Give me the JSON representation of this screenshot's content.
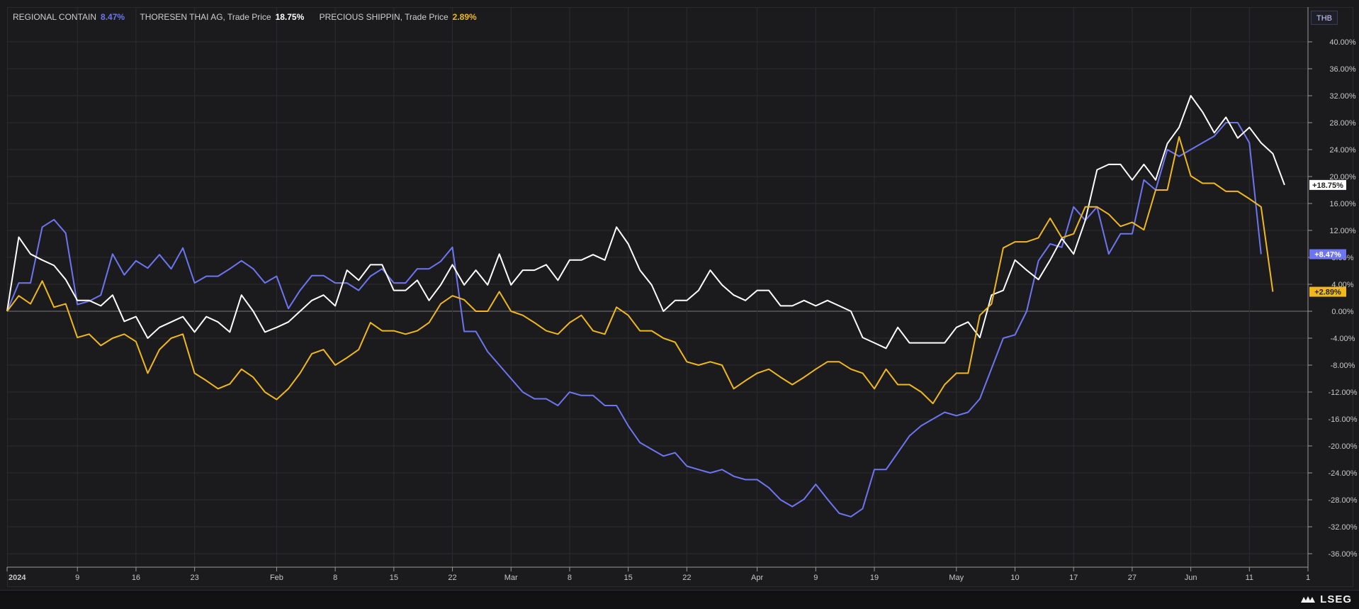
{
  "legend": [
    {
      "name": "REGIONAL CONTAIN",
      "value": "8.47%",
      "color": "#6d75f0"
    },
    {
      "name": "THORESEN THAI AG, Trade Price",
      "value": "18.75%",
      "color": "#ffffff"
    },
    {
      "name": "PRECIOUS SHIPPIN, Trade Price",
      "value": "2.89%",
      "color": "#f0b81c"
    }
  ],
  "currency_button": "THB",
  "brand": "LSEG",
  "chart_data": {
    "type": "line",
    "ylim": [
      -38,
      42
    ],
    "y_ticks": [
      -36,
      -32,
      -28,
      -24,
      -20,
      -16,
      -12,
      -8,
      -4,
      0,
      4,
      8,
      12,
      16,
      20,
      24,
      28,
      32,
      36,
      40
    ],
    "y_tick_labels": [
      "-36.00%",
      "-32.00%",
      "-28.00%",
      "-24.00%",
      "-20.00%",
      "-16.00%",
      "-12.00%",
      "-8.00%",
      "-4.00%",
      "0.00%",
      "4.00%",
      "8.00%",
      "12.00%",
      "16.00%",
      "20.00%",
      "24.00%",
      "28.00%",
      "32.00%",
      "36.00%",
      "40.00%"
    ],
    "x_tick_labels": [
      "2024",
      "9",
      "16",
      "23",
      "Feb",
      "8",
      "15",
      "22",
      "Mar",
      "8",
      "15",
      "22",
      "Apr",
      "9",
      "19",
      "May",
      "10",
      "17",
      "27",
      "Jun",
      "11",
      "1"
    ],
    "x_tick_index": [
      0,
      6,
      11,
      16,
      23,
      28,
      33,
      38,
      43,
      48,
      53,
      58,
      64,
      69,
      74,
      81,
      86,
      91,
      96,
      101,
      106,
      111
    ],
    "n_points": 112,
    "grid": true,
    "zero_line": true,
    "end_labels": [
      "+18.75%",
      "+8.47%",
      "+2.89%"
    ],
    "series": [
      {
        "name": "REGIONAL CONTAIN",
        "color": "#6d75f0",
        "values": [
          0,
          4.2,
          4.2,
          12.5,
          13.6,
          11.6,
          1,
          1.5,
          2.4,
          8.5,
          5.4,
          7.5,
          6.4,
          8.4,
          6.3,
          9.4,
          4.2,
          5.2,
          5.2,
          6.3,
          7.5,
          6.3,
          4.2,
          5.2,
          0.4,
          3.1,
          5.3,
          5.3,
          4.2,
          4.2,
          3.1,
          5.2,
          6.3,
          4.2,
          4.2,
          6.3,
          6.3,
          7.4,
          9.5,
          -3,
          -3,
          -6,
          -8,
          -10,
          -12,
          -13,
          -13,
          -14,
          -12,
          -12.5,
          -12.5,
          -14,
          -14,
          -17,
          -19.5,
          -20.5,
          -21.5,
          -21,
          -23,
          -23.5,
          -24,
          -23.5,
          -24.5,
          -25,
          -25,
          -26.2,
          -28,
          -29,
          -27.9,
          -25.7,
          -27.9,
          -30,
          -30.5,
          -29.3,
          -23.5,
          -23.5,
          -21,
          -18.5,
          -17,
          -16,
          -15,
          -15.5,
          -15,
          -13,
          -8.5,
          -4,
          -3.5,
          0,
          7.5,
          10,
          9.5,
          15.5,
          13.5,
          15.5,
          8.5,
          11.5,
          11.5,
          19.5,
          18,
          24,
          23,
          24,
          25,
          26,
          28,
          28,
          25,
          8.47
        ]
      },
      {
        "name": "THORESEN THAI AG, Trade Price",
        "color": "#ffffff",
        "values": [
          0,
          11,
          8.5,
          7.6,
          6.8,
          4.7,
          1.6,
          1.6,
          0.8,
          2.4,
          -1.5,
          -0.8,
          -4,
          -2.4,
          -1.6,
          -0.8,
          -3.1,
          -0.8,
          -1.6,
          -3.1,
          2.4,
          0,
          -3.1,
          -2.4,
          -1.6,
          0,
          1.6,
          2.4,
          0.8,
          6.1,
          4.6,
          6.9,
          6.9,
          3.1,
          3.1,
          4.6,
          1.6,
          3.9,
          6.9,
          3.9,
          6.1,
          3.9,
          8.5,
          3.9,
          6.1,
          6.1,
          6.9,
          4.6,
          7.6,
          7.6,
          8.4,
          7.6,
          12.5,
          10,
          6.1,
          3.9,
          0,
          1.6,
          1.6,
          3.1,
          6.1,
          3.9,
          2.4,
          1.6,
          3.1,
          3.1,
          0.8,
          0.8,
          1.6,
          0.8,
          1.6,
          0.8,
          0,
          -3.9,
          -4.7,
          -5.5,
          -2.4,
          -4.7,
          -4.7,
          -4.7,
          -4.7,
          -2.4,
          -1.6,
          -3.9,
          2.4,
          3.1,
          7.6,
          6.1,
          4.7,
          7.6,
          10.8,
          8.5,
          13.5,
          21,
          21.8,
          21.8,
          19.5,
          21.8,
          19.5,
          24.9,
          27.3,
          32,
          29.6,
          26.5,
          28.8,
          25.7,
          27.3,
          25,
          23.4,
          18.75
        ]
      },
      {
        "name": "PRECIOUS SHIPPIN, Trade Price",
        "color": "#f0b81c",
        "values": [
          0,
          2.3,
          1.1,
          4.5,
          0.6,
          1.1,
          -3.9,
          -3.4,
          -5.1,
          -4,
          -3.4,
          -4.5,
          -9.2,
          -5.7,
          -4,
          -3.4,
          -9.2,
          -10.3,
          -11.5,
          -10.8,
          -8.6,
          -9.8,
          -12,
          -13.1,
          -11.5,
          -9.2,
          -6.3,
          -5.7,
          -8,
          -6.9,
          -5.7,
          -1.7,
          -2.9,
          -2.9,
          -3.4,
          -2.9,
          -1.7,
          1.1,
          2.3,
          1.7,
          0,
          0,
          2.9,
          0,
          -0.6,
          -1.7,
          -2.9,
          -3.4,
          -1.7,
          -0.6,
          -2.9,
          -3.4,
          0.6,
          -0.6,
          -2.9,
          -2.9,
          -4,
          -4.6,
          -7.5,
          -8,
          -7.5,
          -8,
          -11.5,
          -10.3,
          -9.2,
          -8.6,
          -9.8,
          -10.9,
          -9.8,
          -8.6,
          -7.5,
          -7.5,
          -8.6,
          -9.2,
          -11.5,
          -8.6,
          -10.9,
          -10.9,
          -12,
          -13.7,
          -10.9,
          -9.2,
          -9.2,
          -0.6,
          1.1,
          9.4,
          10.3,
          10.3,
          10.9,
          13.8,
          10.9,
          11.5,
          15.5,
          15.5,
          14.4,
          12.6,
          13.2,
          12.1,
          18,
          18,
          25.9,
          20.1,
          19,
          19,
          17.8,
          17.8,
          16.7,
          15.5,
          2.89
        ]
      }
    ]
  }
}
